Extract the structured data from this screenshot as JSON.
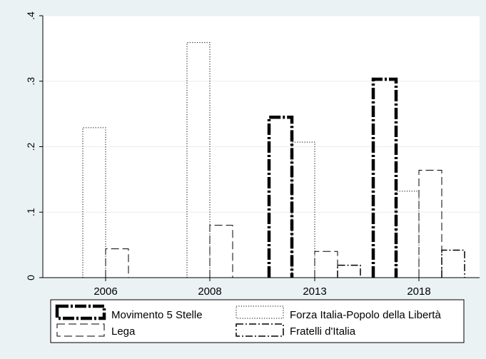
{
  "chart_data": {
    "type": "bar",
    "title": "",
    "xlabel": "",
    "ylabel": "",
    "ylim": [
      0,
      0.4
    ],
    "yticks": [
      0,
      0.1,
      0.2,
      0.3,
      0.4
    ],
    "ytick_labels": [
      "0",
      ".1",
      ".2",
      ".3",
      ".4"
    ],
    "categories": [
      "2006",
      "2008",
      "2013",
      "2018"
    ],
    "grid": true,
    "legend_position": "bottom",
    "series": [
      {
        "name": "Movimento 5 Stelle",
        "style": "heavy-dash-dot",
        "values": [
          null,
          null,
          0.245,
          0.303
        ]
      },
      {
        "name": "Forza Italia-Popolo della Libertà",
        "style": "dotted",
        "values": [
          0.229,
          0.359,
          0.207,
          0.132
        ]
      },
      {
        "name": "Lega",
        "style": "long-dash",
        "values": [
          0.044,
          0.08,
          0.04,
          0.164
        ]
      },
      {
        "name": "Fratelli d'Italia",
        "style": "dash-dot",
        "values": [
          null,
          null,
          0.019,
          0.042
        ]
      }
    ],
    "colors": {
      "background": "#eaf2f3",
      "plot_area": "#ffffff",
      "grid": "#e8eef0",
      "bars": "#000000"
    }
  }
}
